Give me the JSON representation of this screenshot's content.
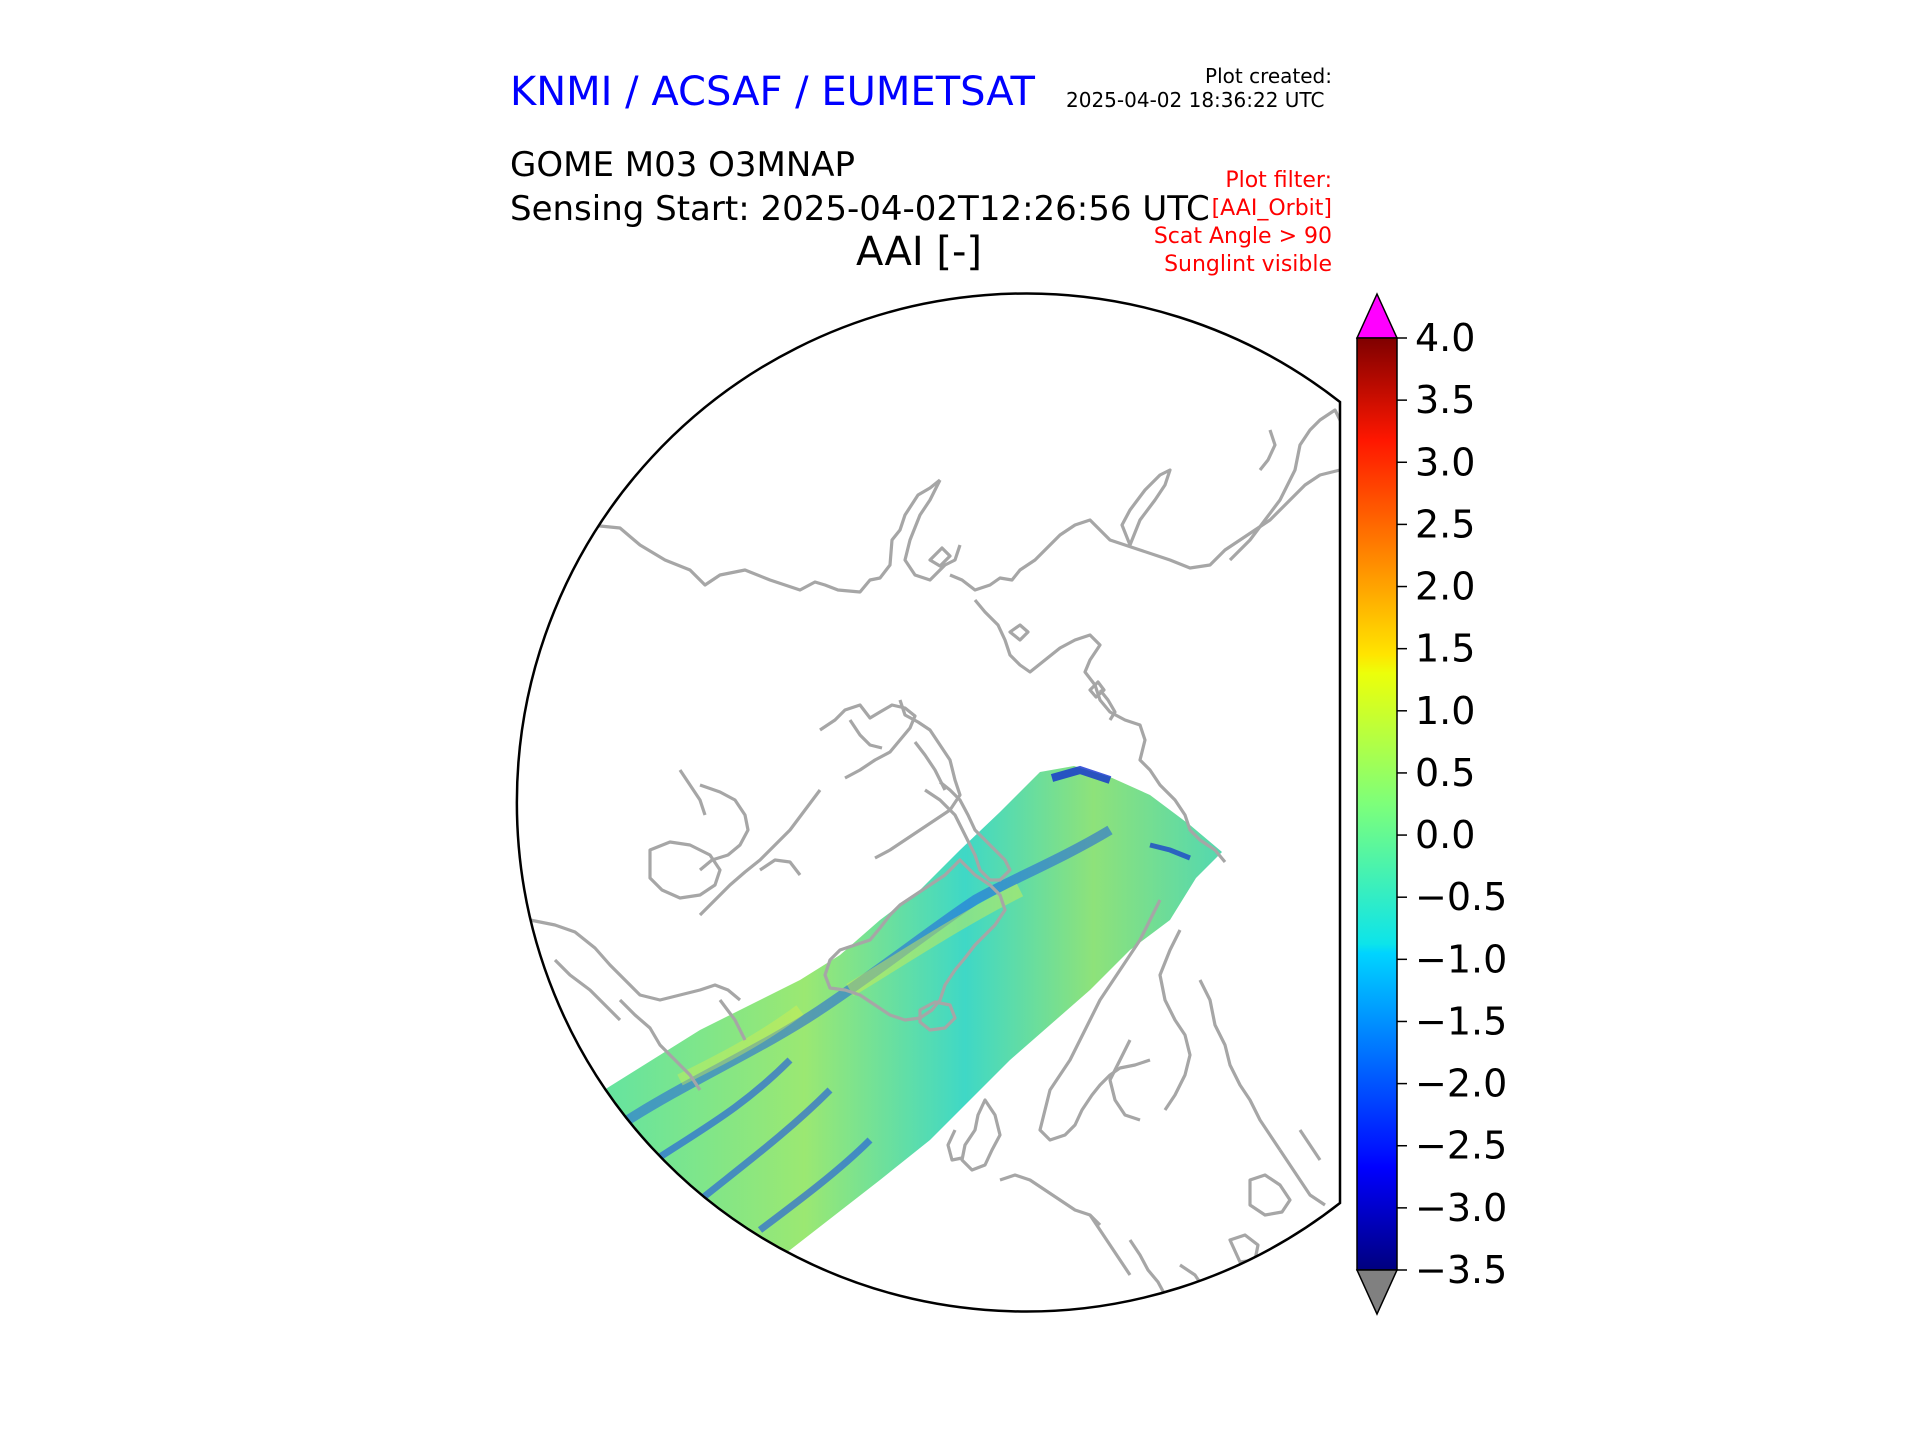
{
  "header": {
    "organization": "KNMI / ACSAF / EUMETSAT",
    "created_label": "Plot created:",
    "created_time": "2025-04-02 18:36:22 UTC",
    "product": "GOME M03 O3MNAP",
    "sensing_start": "Sensing Start: 2025-04-02T12:26:56 UTC",
    "variable_title": "AAI [-]",
    "filter_lines": [
      "Plot filter:",
      "[AAI_Orbit]",
      "Scat Angle > 90",
      "Sunglint visible"
    ]
  },
  "colors": {
    "org_text": "#0000ff",
    "filter_text": "#ff0000",
    "coastline": "#a6a6a6",
    "over_extend": "#ff00ff",
    "under_extend": "#808080"
  },
  "map": {
    "projection_description": "North polar stereographic",
    "features": [
      "coastlines",
      "satellite-swath"
    ]
  },
  "colorbar": {
    "min": -3.5,
    "max": 4.0,
    "tick_labels": [
      "4.0",
      "3.5",
      "3.0",
      "2.5",
      "2.0",
      "1.5",
      "1.0",
      "0.5",
      "0.0",
      "−0.5",
      "−1.0",
      "−1.5",
      "−2.0",
      "−2.5",
      "−3.0",
      "−3.5"
    ],
    "tick_values": [
      4.0,
      3.5,
      3.0,
      2.5,
      2.0,
      1.5,
      1.0,
      0.5,
      0.0,
      -0.5,
      -1.0,
      -1.5,
      -2.0,
      -2.5,
      -3.0,
      -3.5
    ],
    "colormap": "jet",
    "extend": "both"
  }
}
